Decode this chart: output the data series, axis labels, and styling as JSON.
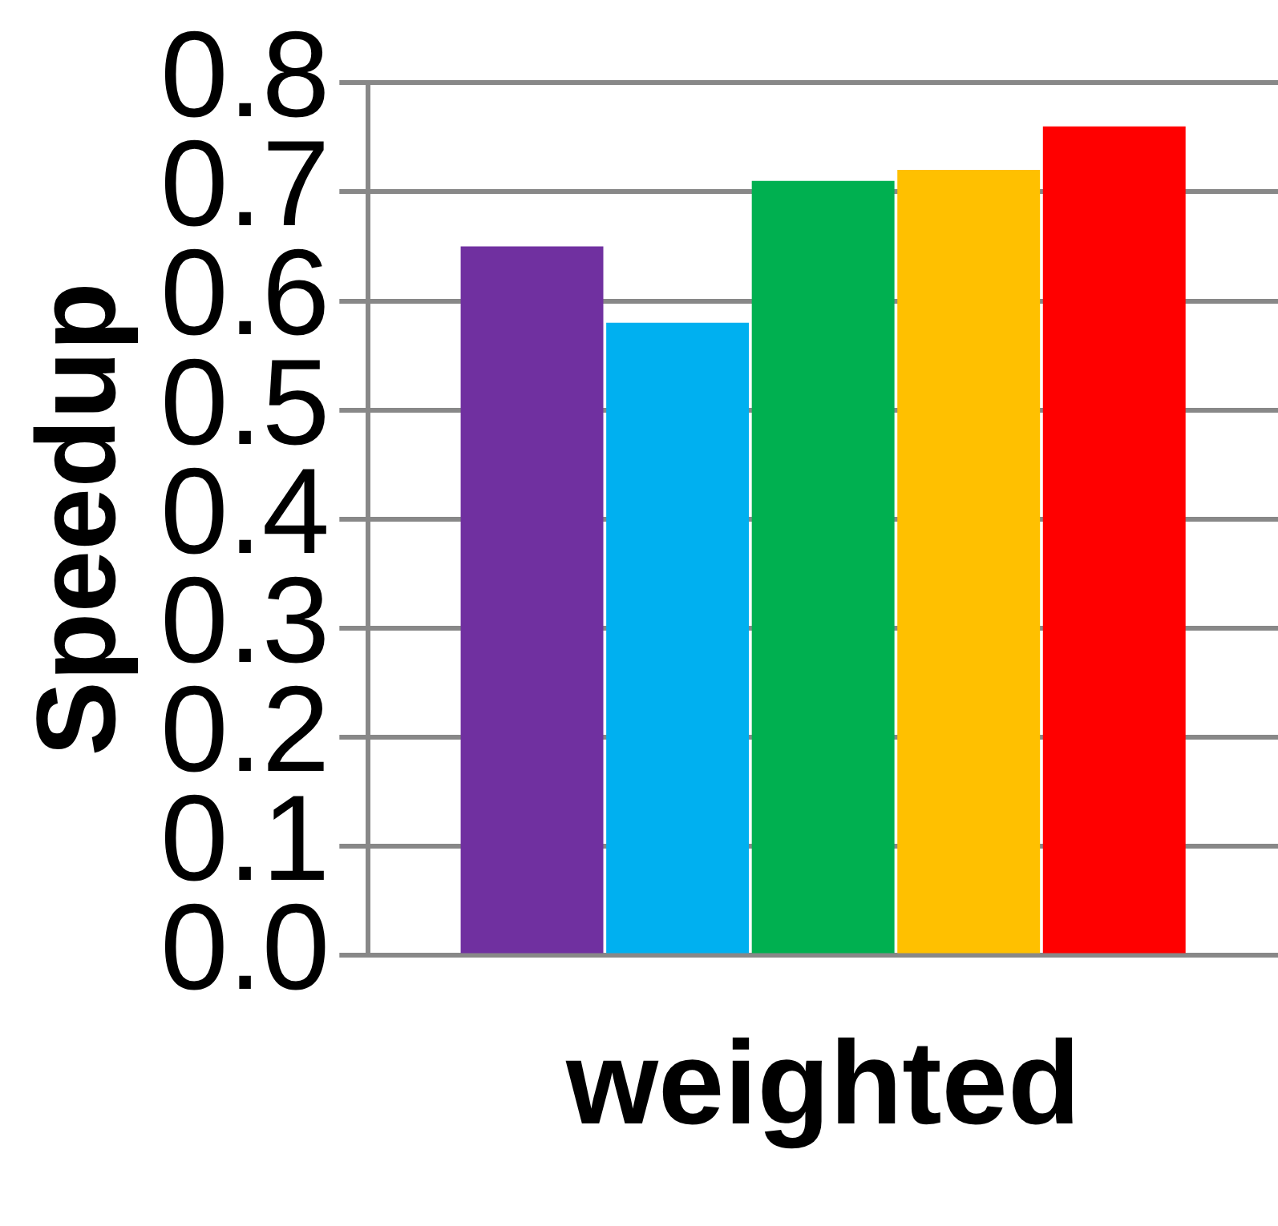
{
  "chart_data": {
    "type": "bar",
    "ylabel": "Speedup",
    "categories": [
      "weighted"
    ],
    "series": [
      {
        "color": "#7030a0",
        "values": [
          0.65
        ]
      },
      {
        "color": "#00b0f0",
        "values": [
          0.58
        ]
      },
      {
        "color": "#00b050",
        "values": [
          0.71
        ]
      },
      {
        "color": "#ffc000",
        "values": [
          0.72
        ]
      },
      {
        "color": "#ff0000",
        "values": [
          0.76
        ]
      }
    ],
    "ylim": [
      0,
      0.8
    ],
    "yticks": [
      {
        "value": 0,
        "label": "0.0"
      },
      0.1,
      0.2,
      0.3,
      0.4,
      0.5,
      0.6,
      0.7,
      0.8
    ],
    "grid": "y",
    "legend": false
  }
}
